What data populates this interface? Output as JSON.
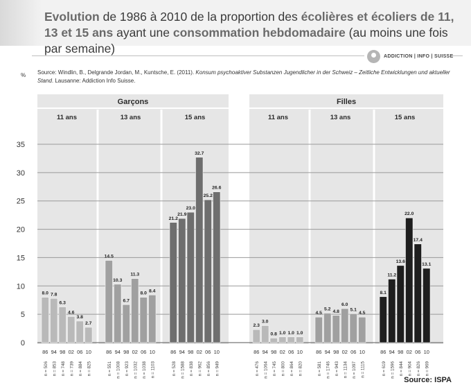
{
  "title": {
    "parts": [
      {
        "text": "Evolution",
        "hl": true
      },
      {
        "text": " de 1986 à 2010 de la proportion des ",
        "hl": false
      },
      {
        "text": "écolières et écoliers de 11, 13 et 15 ans",
        "hl": true
      },
      {
        "text": " ayant une ",
        "hl": false
      },
      {
        "text": "consommation hebdomadaire",
        "hl": true
      },
      {
        "text": " (au moins une fois par semaine)",
        "hl": false
      }
    ]
  },
  "logo_text": "ADDICTION | INFO | SUISSE",
  "percent_label": "%",
  "source_line": {
    "prefix": "Source: Windlin, B., Delgrande Jordan, M., Kuntsche, E. (2011). ",
    "italic": "Konsum psychoaktiver Substanzen Jugendlicher in der Schweiz – Zeitliche Entwicklungen und aktueller Stand",
    "suffix": ". Lausanne: Addiction Info Suisse."
  },
  "source_footer": "Source: ISPA",
  "colors": {
    "panel_bg": "#e6e6e6",
    "bar_11": "#b9b9b9",
    "bar_13": "#a0a0a0",
    "bar_15_garcons": "#6e6e6e",
    "bar_15_filles": "#1e1e1e",
    "grid": "#999999"
  },
  "chart_data": {
    "type": "bar",
    "ylim": [
      0,
      35
    ],
    "yticks": [
      0,
      5,
      10,
      15,
      20,
      25,
      30,
      35
    ],
    "ylabel": "%",
    "years": [
      "86",
      "94",
      "98",
      "02",
      "06",
      "10"
    ],
    "groups": [
      {
        "name": "Garçons",
        "subgroups": [
          {
            "name": "11 ans",
            "values": [
              8.0,
              7.8,
              6.3,
              4.6,
              3.8,
              2.7
            ],
            "labels": [
              "8.0",
              "7.8",
              "6.3",
              "4.6",
              "3.8",
              "2.7"
            ],
            "n": [
              "n = 506",
              "n = 853",
              "n = 748",
              "n = 739",
              "n = 884",
              "n = 825"
            ]
          },
          {
            "name": "13 ans",
            "values": [
              14.5,
              10.3,
              6.7,
              11.3,
              8.0,
              8.4
            ],
            "labels": [
              "14.5",
              "10.3",
              "6.7",
              "11.3",
              "8.0",
              "8.4"
            ],
            "n": [
              "n = 551",
              "n = 1008",
              "n = 923",
              "n = 1032",
              "n = 1038",
              "n = 1103"
            ]
          },
          {
            "name": "15 ans",
            "values": [
              21.2,
              21.9,
              23.0,
              32.7,
              25.2,
              26.6
            ],
            "labels": [
              "21.2",
              "21.9",
              "23.0",
              "32.7",
              "25.2",
              "26.6"
            ],
            "n": [
              "n = 528",
              "n = 1588",
              "n = 838",
              "n = 962",
              "n = 856",
              "n = 949"
            ]
          }
        ]
      },
      {
        "name": "Filles",
        "subgroups": [
          {
            "name": "11 ans",
            "values": [
              2.3,
              3.0,
              0.8,
              1.0,
              1.0,
              1.0
            ],
            "labels": [
              "2.3",
              "3.0",
              "0.8",
              "1.0",
              "1.0",
              "1.0"
            ],
            "n": [
              "n = 476",
              "n = 1064",
              "n = 745",
              "n = 800",
              "n = 864",
              "n = 820"
            ]
          },
          {
            "name": "13 ans",
            "values": [
              4.5,
              5.2,
              4.8,
              6.0,
              5.1,
              4.5
            ],
            "labels": [
              "4.5",
              "5.2",
              "4.8",
              "6.0",
              "5.1",
              "4.5"
            ],
            "n": [
              "n = 581",
              "n = 1746",
              "n = 943",
              "n = 1134",
              "n = 1097",
              "n = 1115"
            ]
          },
          {
            "name": "15 ans",
            "values": [
              8.1,
              11.2,
              13.6,
              22.0,
              17.4,
              13.1
            ],
            "labels": [
              "8.1",
              "11.2",
              "13.6",
              "22.0",
              "17.4",
              "13.1"
            ],
            "n": [
              "n = 619",
              "n = 1596",
              "n = 844",
              "n = 904",
              "n = 826",
              "n = 969"
            ]
          }
        ]
      }
    ]
  }
}
